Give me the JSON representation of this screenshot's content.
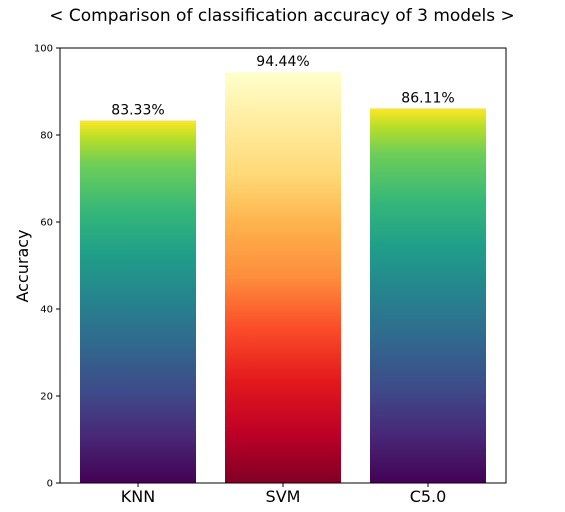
{
  "chart_data": {
    "type": "bar",
    "title": "< Comparison of classification accuracy of 3 models >",
    "xlabel": "",
    "ylabel": "Accuracy",
    "categories": [
      "KNN",
      "SVM",
      "C5.0"
    ],
    "values": [
      83.33,
      94.44,
      86.11
    ],
    "data_labels": [
      "83.33%",
      "94.44%",
      "86.11%"
    ],
    "ylim": [
      0,
      100
    ],
    "yticks": [
      0,
      20,
      40,
      60,
      80,
      100
    ],
    "grid": false,
    "legend": "none",
    "bar_colormaps": [
      "viridis",
      "YlOrRd",
      "viridis"
    ]
  }
}
